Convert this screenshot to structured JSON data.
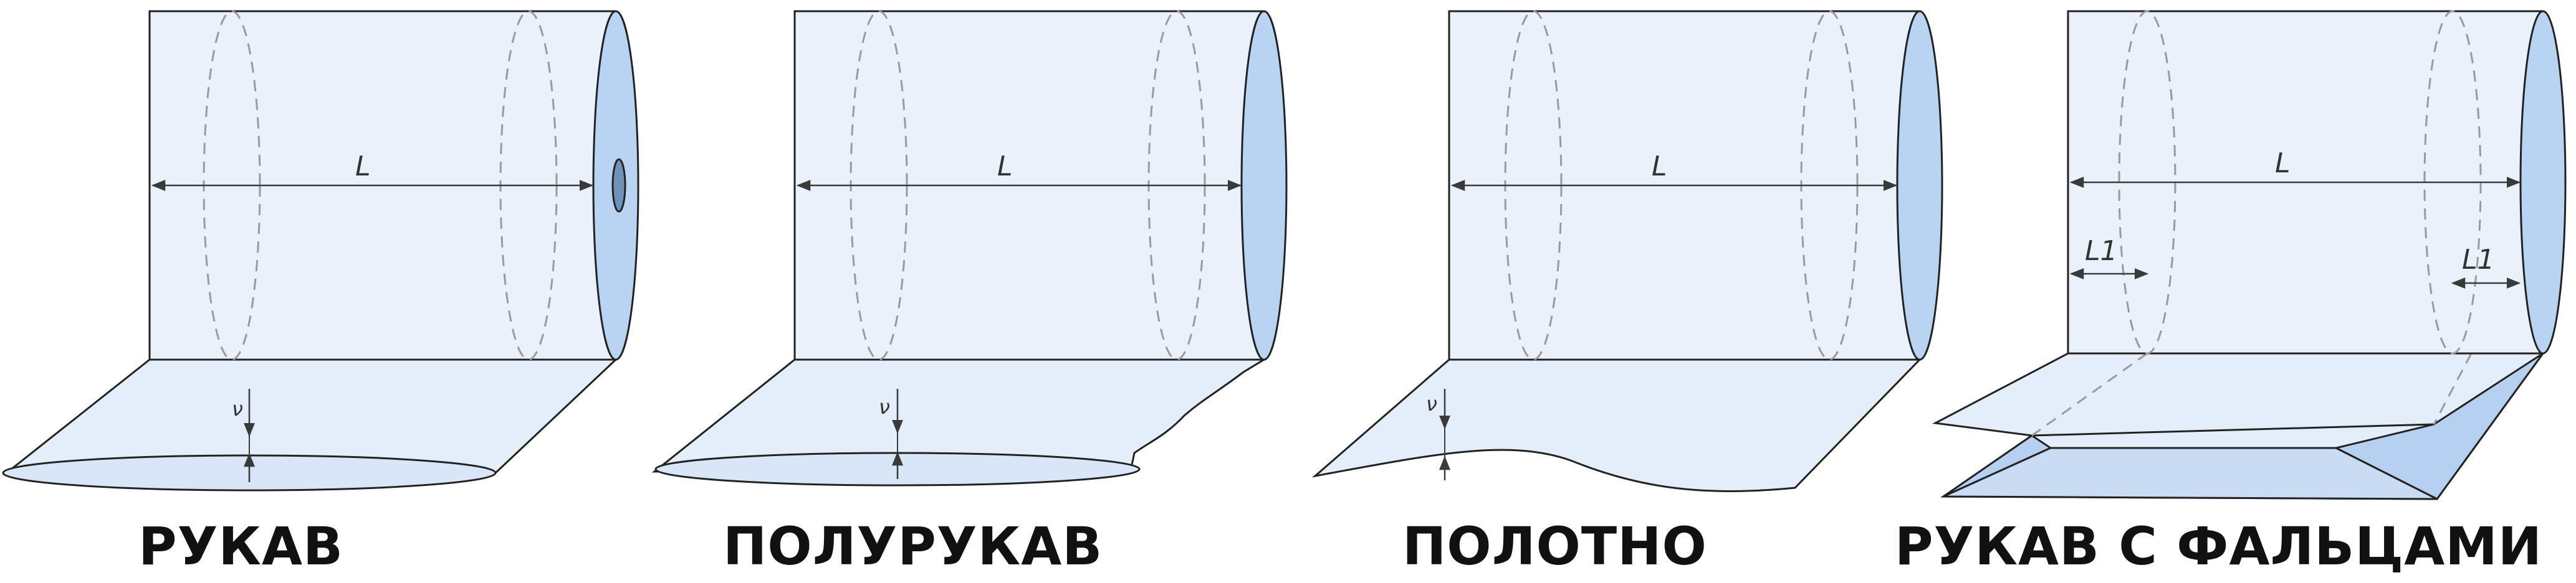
{
  "figure": {
    "colors": {
      "body_fill": "#e9f1fb",
      "end_fill": "#b9d3f2",
      "film_fill": "#e4eefa",
      "fold_fill": "#b5d0f0",
      "outline": "#222222",
      "hidden_line": "#9a9a9a",
      "dim_line": "#3a3a3a"
    },
    "items": [
      {
        "caption": "РУКАВ",
        "length_label": "L",
        "thickness_label": "ν"
      },
      {
        "caption": "ПОЛУРУКАВ",
        "length_label": "L",
        "thickness_label": "ν"
      },
      {
        "caption": "ПОЛОТНО",
        "length_label": "L",
        "thickness_label": "ν"
      },
      {
        "caption": "РУКАВ С ФАЛЬЦАМИ",
        "length_label": "L",
        "thickness_label": "",
        "fold_label_left": "L1",
        "fold_label_right": "L1"
      }
    ]
  }
}
